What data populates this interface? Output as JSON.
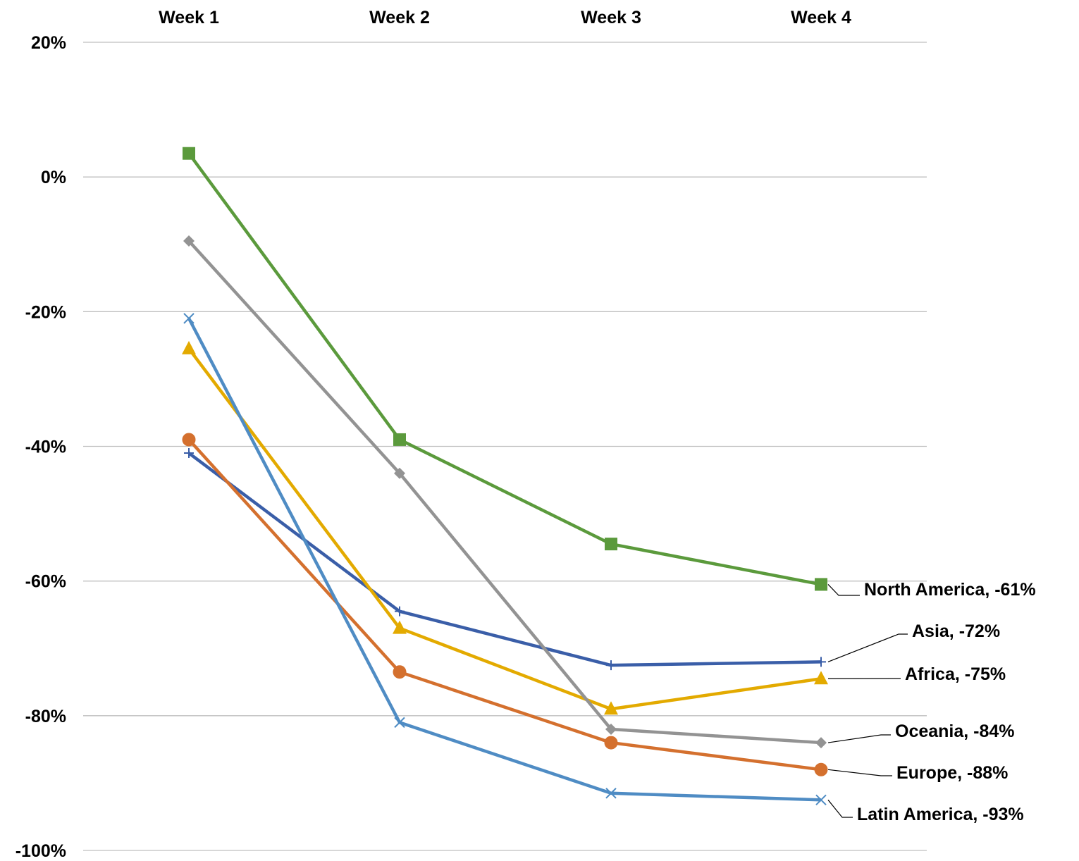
{
  "chart_data": {
    "type": "line",
    "title": "",
    "xlabel": "",
    "ylabel": "",
    "categories": [
      "Week 1",
      "Week 2",
      "Week 3",
      "Week 4"
    ],
    "x_axis_position": "top",
    "ylim": [
      -100,
      20
    ],
    "y_ticks": [
      20,
      0,
      -20,
      -40,
      -60,
      -80,
      -100
    ],
    "y_tick_labels": [
      "20%",
      "0%",
      "-20%",
      "-40%",
      "-60%",
      "-80%",
      "-100%"
    ],
    "grid": true,
    "legend": "none",
    "series": [
      {
        "name": "North America",
        "values": [
          3.5,
          -39,
          -54.5,
          -60.5
        ],
        "color": "#5b9a3c",
        "marker": "square",
        "end_label": "North America, -61%"
      },
      {
        "name": "Asia",
        "values": [
          -41,
          -64.5,
          -72.5,
          -72
        ],
        "color": "#3a5ea8",
        "marker": "plus",
        "end_label": "Asia, -72%"
      },
      {
        "name": "Africa",
        "values": [
          -25.5,
          -67,
          -79,
          -74.5
        ],
        "color": "#e3aa00",
        "marker": "triangle",
        "end_label": "Africa, -75%"
      },
      {
        "name": "Oceania",
        "values": [
          -9.5,
          -44,
          -82,
          -84
        ],
        "color": "#939393",
        "marker": "diamond",
        "end_label": "Oceania, -84%"
      },
      {
        "name": "Europe",
        "values": [
          -39,
          -73.5,
          -84,
          -88
        ],
        "color": "#d4702e",
        "marker": "circle",
        "end_label": "Europe, -88%"
      },
      {
        "name": "Latin America",
        "values": [
          -21,
          -81,
          -91.5,
          -92.5
        ],
        "color": "#4f8cc4",
        "marker": "x",
        "end_label": "Latin America, -93%"
      }
    ]
  }
}
